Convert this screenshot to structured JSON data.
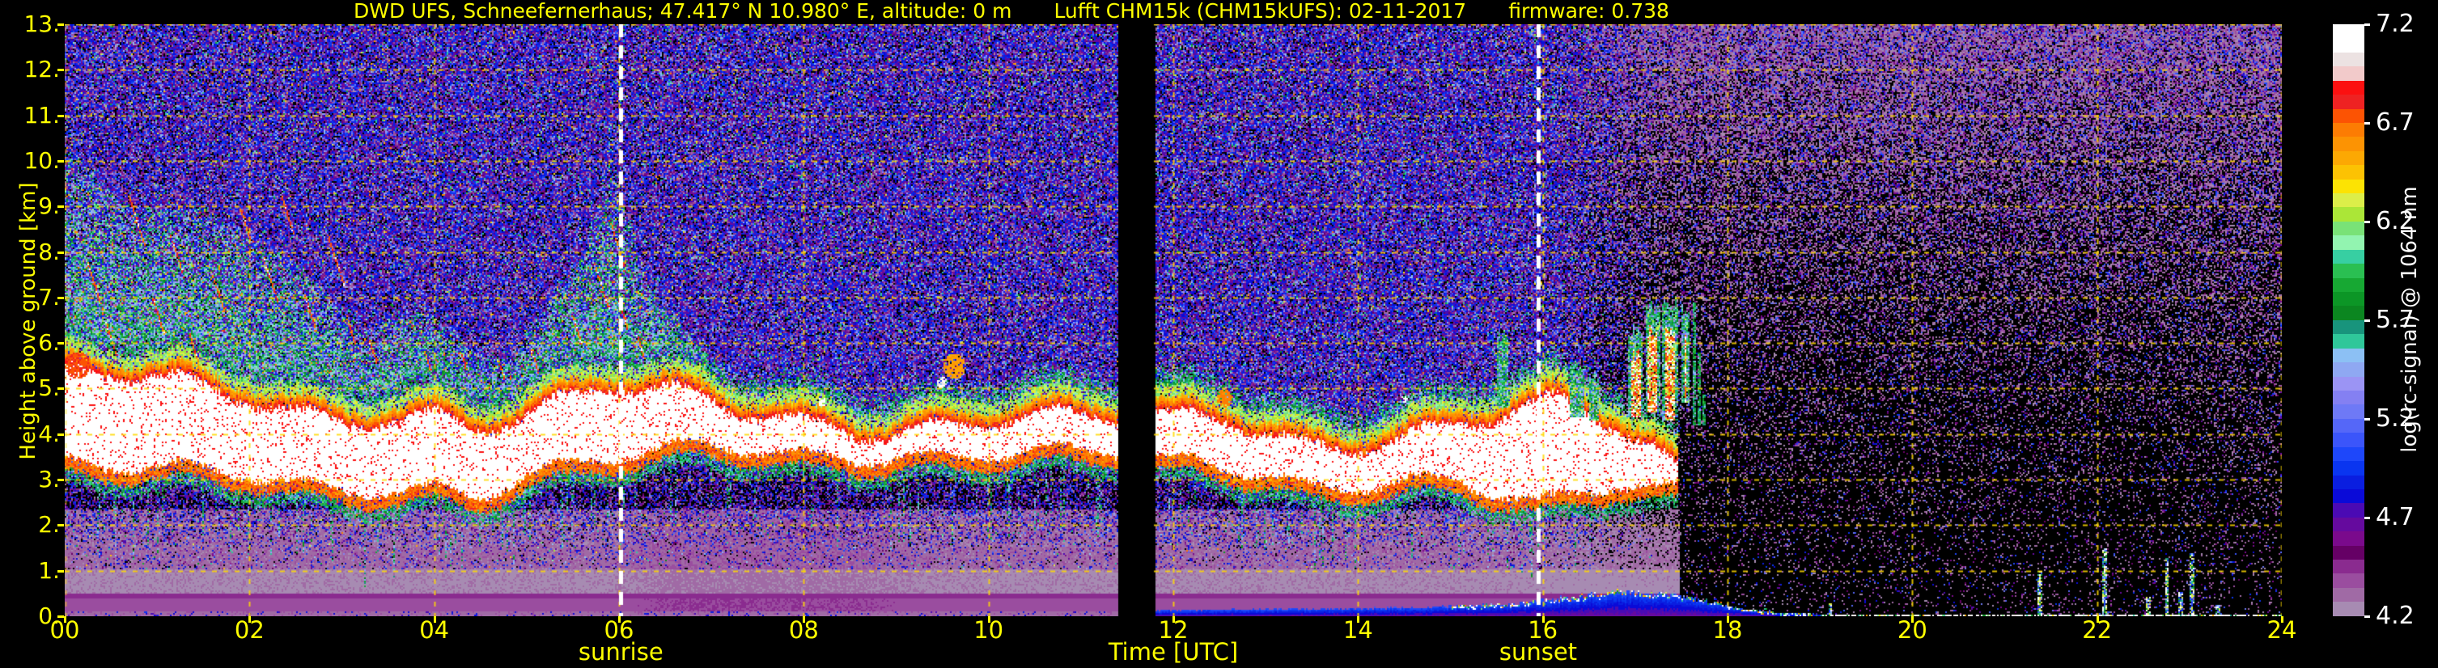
{
  "page": {
    "background": "#000000",
    "text_yellow": "#ffff00",
    "text_white": "#ffffff"
  },
  "header": {
    "station": "DWD UFS, Schneefernerhaus; 47.417° N 10.980° E, altitude: 0 m",
    "device": "Lufft CHM15k (CHM15kUFS): 02-11-2017",
    "firmware": "firmware: 0.738"
  },
  "chart_data": {
    "type": "heatmap",
    "title": "DWD UFS, Schneefernerhaus; 47.417° N 10.980° E, altitude: 0 m | Lufft CHM15k (CHM15kUFS): 02-11-2017 | firmware: 0.738",
    "xlabel": "Time [UTC]",
    "ylabel": "Height above ground [km]",
    "x_range_hours": [
      0,
      24
    ],
    "y_range_km": [
      0,
      13
    ],
    "x_ticks": [
      "00",
      "02",
      "04",
      "06",
      "08",
      "10",
      "12",
      "14",
      "16",
      "18",
      "20",
      "22",
      "24"
    ],
    "y_ticks": [
      "13.",
      "12.",
      "11.",
      "10.",
      "9.",
      "8.",
      "7.",
      "6.",
      "5.",
      "4.",
      "3.",
      "2.",
      "1.",
      "0."
    ],
    "grid": {
      "x_step_hours": 2,
      "y_step_km": 1,
      "style": "dashed",
      "color": "#ffd700"
    },
    "annotations": {
      "sunrise": {
        "time_utc": 6.02,
        "label": "sunrise"
      },
      "sunset": {
        "time_utc": 15.95,
        "label": "sunset"
      }
    },
    "data_gap_utc": [
      11.4,
      11.79
    ],
    "colorbar": {
      "label": "log(rc-signal) @ 1064 nm",
      "min": 4.2,
      "max": 7.2,
      "ticks": [
        "7.2",
        "6.7",
        "6.2",
        "5.7",
        "5.2",
        "4.7",
        "4.2"
      ],
      "tick_values": [
        7.2,
        6.7,
        6.2,
        5.7,
        5.2,
        4.7,
        4.2
      ],
      "palette_top_to_bottom": [
        "#ffffff",
        "#ffffff",
        "#ece2e2",
        "#f2caca",
        "#fb1010",
        "#ee2222",
        "#fc5303",
        "#fc7c03",
        "#fc9303",
        "#fca803",
        "#fcc203",
        "#fce303",
        "#dcee49",
        "#abe637",
        "#79e277",
        "#92f4b0",
        "#37cfa2",
        "#2abf52",
        "#17a833",
        "#0c9626",
        "#0b8620",
        "#18947c",
        "#2fc79a",
        "#8cc0f4",
        "#8fa8f2",
        "#9b94f4",
        "#8480f2",
        "#6e79f6",
        "#5567f8",
        "#3b55fa",
        "#1e47fa",
        "#0a35f0",
        "#0a1ee0",
        "#0a0ad8",
        "#4a0ab4",
        "#650a9e",
        "#7a0a8c",
        "#650065",
        "#8a2b8f",
        "#9a4d9f",
        "#a06aa5",
        "#a78bb2"
      ]
    },
    "features": {
      "cloud_band_km": [
        [
          0,
          3.3,
          5.3
        ],
        [
          0.5,
          3.1,
          5.1
        ],
        [
          1,
          3.0,
          4.9
        ],
        [
          1.5,
          2.9,
          4.6
        ],
        [
          2,
          2.9,
          4.5
        ],
        [
          2.5,
          2.8,
          4.3
        ],
        [
          3,
          2.8,
          4.3
        ],
        [
          3.5,
          2.9,
          4.5
        ],
        [
          4,
          2.9,
          4.5
        ],
        [
          4.5,
          2.7,
          4.2
        ],
        [
          5,
          3.0,
          4.3
        ],
        [
          5.5,
          3.1,
          4.5
        ],
        [
          5.9,
          3.2,
          4.7
        ],
        [
          6.3,
          3.3,
          4.6
        ],
        [
          6.8,
          3.5,
          4.5
        ],
        [
          7.2,
          3.6,
          4.4
        ],
        [
          7.8,
          3.6,
          4.35
        ],
        [
          8.4,
          3.65,
          4.3
        ],
        [
          9,
          3.7,
          4.25
        ],
        [
          9.6,
          3.6,
          4.3
        ],
        [
          10.2,
          3.55,
          4.3
        ],
        [
          10.8,
          3.5,
          4.2
        ],
        [
          11.4,
          3.45,
          4.15
        ],
        [
          11.79,
          3.3,
          4.2
        ],
        [
          12.2,
          3.4,
          4.35
        ],
        [
          12.6,
          3.4,
          4.5
        ],
        [
          13,
          3.35,
          4.3
        ],
        [
          13.5,
          3.15,
          4.1
        ],
        [
          14,
          3.2,
          4.15
        ],
        [
          14.5,
          3.25,
          4.25
        ],
        [
          15,
          3.1,
          4.3
        ],
        [
          15.4,
          2.8,
          4.4
        ],
        [
          15.8,
          2.5,
          4.5
        ],
        [
          16.1,
          2.45,
          4.6
        ],
        [
          16.4,
          2.6,
          4.4
        ],
        [
          16.7,
          2.8,
          4.2
        ],
        [
          17,
          2.9,
          3.9
        ],
        [
          17.2,
          2.85,
          3.7
        ],
        [
          17.45,
          2.9,
          3.3
        ]
      ],
      "aerosol_plume_top_km": [
        [
          0,
          9.9
        ],
        [
          0.4,
          9.4
        ],
        [
          0.8,
          8.7
        ],
        [
          1.2,
          8.5
        ],
        [
          1.6,
          8.4
        ],
        [
          2,
          8.3
        ],
        [
          2.4,
          7.6
        ],
        [
          2.8,
          7.0
        ],
        [
          3.2,
          6.6
        ],
        [
          3.6,
          6.9
        ],
        [
          4,
          6.5
        ],
        [
          4.4,
          6.0
        ],
        [
          4.8,
          5.8
        ],
        [
          5.2,
          6.4
        ],
        [
          5.6,
          7.6
        ],
        [
          5.9,
          9.7
        ],
        [
          6.1,
          8.4
        ],
        [
          6.3,
          7.0
        ],
        [
          6.6,
          6.0
        ],
        [
          6.9,
          5.4
        ]
      ],
      "aerosol_streaks": [
        [
          0.25,
          7.3,
          0.9
        ],
        [
          0.45,
          6.1,
          0.7
        ],
        [
          0.7,
          8.7,
          1.0
        ],
        [
          0.95,
          6.6,
          0.8
        ],
        [
          1.15,
          7.9,
          0.9
        ],
        [
          1.35,
          5.9,
          0.6
        ],
        [
          1.6,
          7.1,
          0.8
        ],
        [
          1.9,
          8.6,
          0.7
        ],
        [
          2.15,
          7.4,
          1.0
        ],
        [
          2.35,
          8.8,
          0.8
        ],
        [
          2.6,
          6.7,
          0.7
        ],
        [
          2.85,
          7.8,
          1.1
        ],
        [
          3.05,
          6.3,
          0.6
        ],
        [
          3.3,
          5.8,
          0.5
        ],
        [
          3.9,
          5.6,
          0.4
        ],
        [
          4.3,
          5.5,
          0.45
        ],
        [
          4.7,
          5.4,
          0.4
        ],
        [
          5.05,
          5.6,
          0.5
        ],
        [
          5.5,
          6.3,
          0.6
        ],
        [
          5.75,
          7.2,
          0.9
        ],
        [
          5.9,
          8.2,
          1.0
        ],
        [
          6.0,
          6.6,
          0.6
        ],
        [
          6.2,
          5.9,
          0.5
        ]
      ],
      "convective_towers": [
        [
          15.5,
          15.62,
          4.6,
          6.35,
          0
        ],
        [
          16.28,
          16.44,
          4.4,
          5.65,
          0
        ],
        [
          16.5,
          16.6,
          4.3,
          5.4,
          0
        ],
        [
          16.92,
          17.08,
          4.4,
          6.5,
          1
        ],
        [
          17.1,
          17.26,
          4.5,
          7.05,
          1
        ],
        [
          17.28,
          17.45,
          4.3,
          7.1,
          1
        ],
        [
          17.5,
          17.58,
          4.7,
          6.9,
          1
        ]
      ],
      "thin_spikes_utc": [
        [
          17.63,
          6.9
        ],
        [
          17.68,
          5.8
        ],
        [
          17.73,
          4.9
        ]
      ],
      "small_clouds": [
        [
          8.2,
          4.72,
          0.1,
          7.1
        ],
        [
          9.5,
          5.15,
          0.13,
          7.0
        ],
        [
          9.62,
          5.5,
          0.28,
          6.5
        ],
        [
          12.55,
          4.8,
          0.2,
          6.6
        ],
        [
          14.5,
          4.78,
          0.08,
          7.1
        ],
        [
          0.15,
          5.5,
          0.3,
          6.7
        ]
      ],
      "surface_blue_layer_top_km": [
        [
          11.6,
          0.14
        ],
        [
          12.5,
          0.16
        ],
        [
          13.5,
          0.18
        ],
        [
          14.5,
          0.2
        ],
        [
          15.2,
          0.25
        ],
        [
          15.8,
          0.3
        ],
        [
          16.2,
          0.42
        ],
        [
          16.8,
          0.55
        ],
        [
          17.2,
          0.52
        ],
        [
          17.6,
          0.42
        ],
        [
          17.9,
          0.3
        ],
        [
          18.2,
          0.18
        ],
        [
          18.5,
          0.1
        ],
        [
          18.9,
          0.07
        ]
      ],
      "night_echo_spikes": [
        [
          18.4,
          0.25
        ],
        [
          19.1,
          0.3
        ],
        [
          21.37,
          1.0
        ],
        [
          22.07,
          1.5
        ],
        [
          22.55,
          0.45
        ],
        [
          22.75,
          1.3
        ],
        [
          22.9,
          0.55
        ],
        [
          23.02,
          1.4
        ],
        [
          23.3,
          0.25
        ]
      ],
      "boundary_haze": {
        "top_km": 2.35,
        "end_utc": 17.45,
        "brightness_by_time": [
          [
            0,
            1.0
          ],
          [
            5.9,
            1.0
          ],
          [
            6.6,
            0.82
          ],
          [
            8.5,
            0.85
          ],
          [
            9.5,
            1.0
          ],
          [
            15,
            1.0
          ],
          [
            16.5,
            1.08
          ],
          [
            17.45,
            1.05
          ]
        ]
      },
      "noise": {
        "day_until_utc": 16.1,
        "night_from_utc": 17.3,
        "night_density_base": 0.1,
        "night_density_height_factor": 0.8,
        "night_density_height_exp": 1.6
      }
    }
  }
}
